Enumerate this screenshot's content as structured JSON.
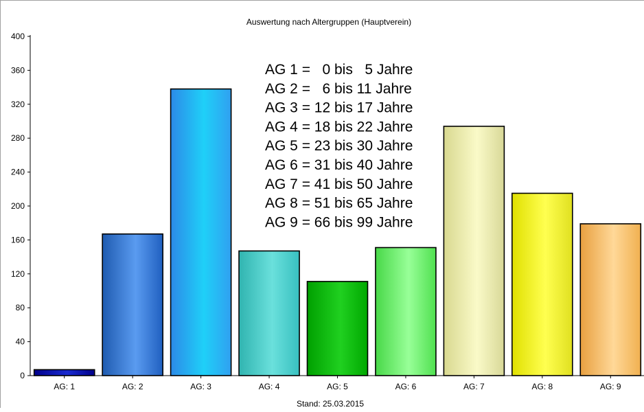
{
  "chart_data": {
    "type": "bar",
    "title": "Auswertung nach Altergruppen (Hauptverein)",
    "footer": "Stand: 25.03.2015",
    "categories": [
      "AG: 1",
      "AG: 2",
      "AG: 3",
      "AG: 4",
      "AG: 5",
      "AG: 6",
      "AG: 7",
      "AG: 8",
      "AG: 9"
    ],
    "values": [
      7,
      167,
      338,
      147,
      111,
      151,
      294,
      215,
      179
    ],
    "colors": [
      [
        "#00008b",
        "#1a2bd0",
        "#00008b"
      ],
      [
        "#1f5bb0",
        "#5a9bf0",
        "#2060c0"
      ],
      [
        "#2c8ae8",
        "#1fd0f8",
        "#30a0f0"
      ],
      [
        "#30b4b0",
        "#6ae0dc",
        "#38c0c0"
      ],
      [
        "#00a000",
        "#20d020",
        "#00a800"
      ],
      [
        "#48d848",
        "#98ff98",
        "#50e050"
      ],
      [
        "#d8d890",
        "#fafac8",
        "#d8d898"
      ],
      [
        "#e0e000",
        "#ffff50",
        "#e0e020"
      ],
      [
        "#e8a040",
        "#ffd898",
        "#f0b050"
      ]
    ],
    "ylim": [
      0,
      400
    ],
    "yticks": [
      0,
      40,
      80,
      120,
      160,
      200,
      240,
      280,
      320,
      360,
      400
    ],
    "grid": false,
    "legend_lines": [
      "AG 1 =   0 bis   5 Jahre",
      "AG 2 =   6 bis 11 Jahre",
      "AG 3 = 12 bis 17 Jahre",
      "AG 4 = 18 bis 22 Jahre",
      "AG 5 = 23 bis 30 Jahre",
      "AG 6 = 31 bis 40 Jahre",
      "AG 7 = 41 bis 50 Jahre",
      "AG 8 = 51 bis 65 Jahre",
      "AG 9 = 66 bis 99 Jahre"
    ]
  }
}
